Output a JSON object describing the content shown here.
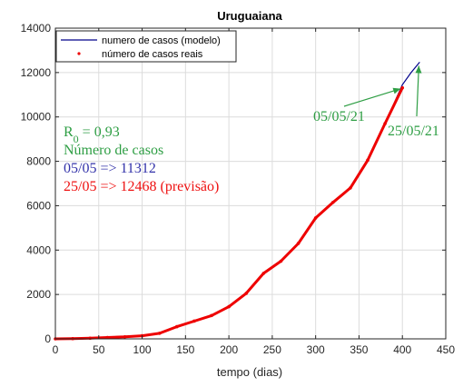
{
  "chart_data": {
    "type": "line",
    "title": "Uruguaiana",
    "xlabel": "tempo (dias)",
    "ylabel": "",
    "xlim": [
      0,
      450
    ],
    "ylim": [
      0,
      14000
    ],
    "xticks": [
      "0",
      "50",
      "100",
      "150",
      "200",
      "250",
      "300",
      "350",
      "400",
      "450"
    ],
    "yticks": [
      "0",
      "2000",
      "4000",
      "6000",
      "8000",
      "10000",
      "12000",
      "14000"
    ],
    "grid": true,
    "legend_position": "top-left",
    "series": [
      {
        "name": "numero de casos (modelo)",
        "color": "#00008b",
        "style": "line",
        "x": [
          0,
          20,
          40,
          60,
          80,
          100,
          120,
          140,
          160,
          180,
          200,
          220,
          240,
          260,
          280,
          300,
          320,
          340,
          360,
          380,
          400,
          410,
          420
        ],
        "y": [
          0,
          10,
          30,
          60,
          90,
          140,
          250,
          550,
          800,
          1050,
          1450,
          2050,
          2950,
          3500,
          4300,
          5450,
          6150,
          6800,
          8050,
          9700,
          11450,
          12000,
          12468
        ]
      },
      {
        "name": "número de casos reais",
        "color": "#ee0000",
        "style": "markers",
        "x": [
          0,
          20,
          40,
          60,
          80,
          100,
          120,
          140,
          160,
          180,
          200,
          220,
          240,
          260,
          280,
          300,
          320,
          340,
          360,
          380,
          400
        ],
        "y": [
          0,
          10,
          30,
          60,
          90,
          140,
          250,
          550,
          800,
          1050,
          1450,
          2050,
          2950,
          3500,
          4300,
          5450,
          6150,
          6800,
          8050,
          9700,
          11312
        ]
      }
    ],
    "annotations": {
      "r0_prefix": "R",
      "r0_sub": "0",
      "r0_value": " = 0,93",
      "cases_title": "Número de casos",
      "line_0505": "05/05 => 11312",
      "line_2505": "25/05 => 12468 (previsão)",
      "date_0505": "05/05/21",
      "date_2505": "25/05/21",
      "green": "#2e9e44",
      "blue": "#3333aa",
      "red": "#ee1111",
      "arrow_0505_target": [
        400,
        11312
      ],
      "arrow_2505_target": [
        420,
        12468
      ]
    }
  }
}
